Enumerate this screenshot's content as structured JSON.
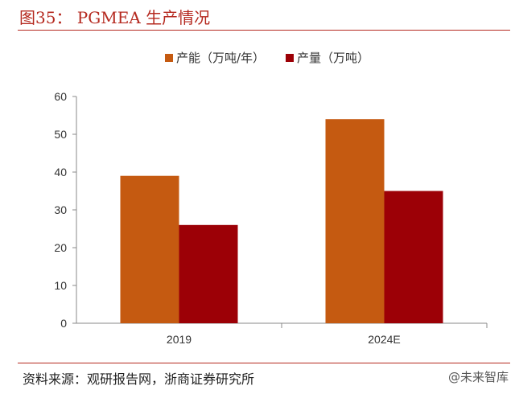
{
  "page": {
    "title": "图35：  PGMEA 生产情况",
    "source": "资料来源：观研报告网，浙商证券研究所",
    "watermark": "@未来智库"
  },
  "colors": {
    "title": "#b5291f",
    "capacity": "#c55a11",
    "output": "#9c0006"
  },
  "chart_data": {
    "type": "bar",
    "categories": [
      "2019",
      "2024E"
    ],
    "series": [
      {
        "name": "产能（万吨/年）",
        "color": "#c55a11",
        "values": [
          39,
          54
        ]
      },
      {
        "name": "产量（万吨）",
        "color": "#9c0006",
        "values": [
          26,
          35
        ]
      }
    ],
    "ylim": [
      0,
      60
    ],
    "yticks": [
      "0",
      "10",
      "20",
      "30",
      "40",
      "50",
      "60"
    ],
    "legend_position": "top-center",
    "grid": false
  }
}
